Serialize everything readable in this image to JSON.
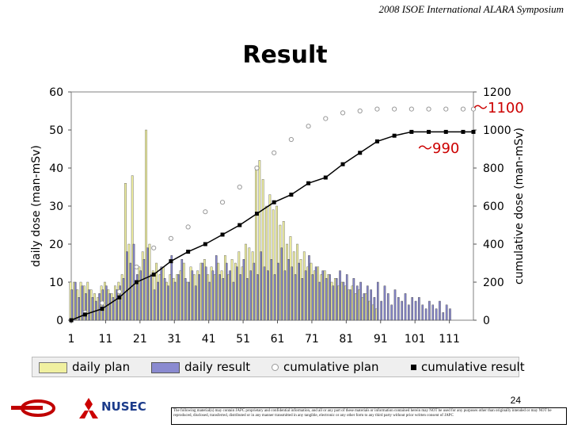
{
  "header": "2008 ISOE International ALARA Symposium",
  "title": "Result",
  "page_number": "24",
  "disclaimer": "The following material(s) may contain JAPC proprietary and confidential information, and all or any part of these materials or information contained herein may NOT be used for any purposes other than originally intended or may NOT be reproduced, disclosed, transferred, distributed or in any manner transmitted in any tangible, electronic or any other form to any third party without prior written consent of JAPC",
  "logos": {
    "nusec": "NUSEC",
    "left_logo_icon": "company-logo-icon",
    "mitsubishi_icon": "mitsubishi-logo-icon"
  },
  "colors": {
    "daily_plan": "#f0f0a0",
    "daily_result": "#8a8ad0",
    "cumulative_plan": "#c8c8c8",
    "cumulative_result": "#000000",
    "annotation": "#cc0000"
  },
  "chart_data": {
    "type": "bar+line",
    "xlabel": "",
    "ylabel": "daily dose (man-mSv)",
    "y2label": "cumulative dose (man-mSv)",
    "xticks": [
      "1",
      "11",
      "21",
      "31",
      "41",
      "51",
      "61",
      "71",
      "81",
      "91",
      "101",
      "111"
    ],
    "xlim": [
      1,
      118
    ],
    "ylim": [
      0,
      60
    ],
    "y2lim": [
      0,
      1200
    ],
    "yticks": [
      "0",
      "10",
      "20",
      "30",
      "40",
      "50",
      "60"
    ],
    "y2ticks": [
      "0",
      "200",
      "400",
      "600",
      "800",
      "1000",
      "1200"
    ],
    "legend": [
      "daily plan",
      "daily result",
      "cumulative plan",
      "cumulative result"
    ],
    "annotations": [
      {
        "text": "～1100",
        "x": 118,
        "y2": 1100
      },
      {
        "text": "～990",
        "x": 99,
        "y2": 990
      }
    ],
    "series": [
      {
        "name": "daily plan",
        "type": "bar",
        "axis": "left",
        "x": [
          1,
          2,
          3,
          4,
          5,
          6,
          7,
          8,
          9,
          10,
          11,
          12,
          13,
          14,
          15,
          16,
          17,
          18,
          19,
          20,
          21,
          22,
          23,
          24,
          25,
          26,
          27,
          28,
          29,
          30,
          31,
          32,
          33,
          34,
          35,
          36,
          37,
          38,
          39,
          40,
          41,
          42,
          43,
          44,
          45,
          46,
          47,
          48,
          49,
          50,
          51,
          52,
          53,
          54,
          55,
          56,
          57,
          58,
          59,
          60,
          61,
          62,
          63,
          64,
          65,
          66,
          67,
          68,
          69,
          70,
          71,
          72,
          73,
          74,
          75,
          76,
          77,
          78,
          79,
          80,
          81,
          82,
          83,
          84,
          85,
          86,
          87,
          88,
          89,
          90
        ],
        "values": [
          10,
          10,
          8,
          10,
          9,
          10,
          8,
          7,
          6,
          9,
          10,
          8,
          7,
          9,
          10,
          12,
          36,
          20,
          38,
          10,
          14,
          18,
          50,
          20,
          13,
          15,
          12,
          14,
          10,
          12,
          11,
          12,
          13,
          15,
          10,
          14,
          12,
          13,
          15,
          16,
          12,
          14,
          12,
          15,
          13,
          17,
          12,
          16,
          15,
          18,
          14,
          20,
          19,
          18,
          40,
          42,
          37,
          30,
          33,
          29,
          30,
          25,
          26,
          20,
          22,
          18,
          20,
          16,
          18,
          14,
          15,
          13,
          14,
          12,
          13,
          12,
          10,
          11,
          9,
          10,
          9,
          8,
          9,
          7,
          8,
          6,
          7,
          5,
          4,
          3
        ]
      },
      {
        "name": "daily result",
        "type": "bar",
        "axis": "left",
        "x": [
          1,
          2,
          3,
          4,
          5,
          6,
          7,
          8,
          9,
          10,
          11,
          12,
          13,
          14,
          15,
          16,
          17,
          18,
          19,
          20,
          21,
          22,
          23,
          24,
          25,
          26,
          27,
          28,
          29,
          30,
          31,
          32,
          33,
          34,
          35,
          36,
          37,
          38,
          39,
          40,
          41,
          42,
          43,
          44,
          45,
          46,
          47,
          48,
          49,
          50,
          51,
          52,
          53,
          54,
          55,
          56,
          57,
          58,
          59,
          60,
          61,
          62,
          63,
          64,
          65,
          66,
          67,
          68,
          69,
          70,
          71,
          72,
          73,
          74,
          75,
          76,
          77,
          78,
          79,
          80,
          81,
          82,
          83,
          84,
          85,
          86,
          87,
          88,
          89,
          90,
          91,
          92,
          93,
          94,
          95,
          96,
          97,
          98,
          99,
          100,
          101,
          102,
          103,
          104,
          105,
          106,
          107,
          108,
          109,
          110,
          111
        ],
        "values": [
          8,
          10,
          6,
          9,
          7,
          8,
          6,
          5,
          7,
          8,
          9,
          7,
          6,
          8,
          9,
          11,
          18,
          15,
          20,
          12,
          13,
          16,
          19,
          12,
          8,
          10,
          14,
          11,
          9,
          17,
          10,
          12,
          16,
          11,
          10,
          13,
          9,
          12,
          15,
          14,
          10,
          13,
          17,
          12,
          11,
          15,
          13,
          10,
          14,
          12,
          16,
          11,
          13,
          15,
          12,
          18,
          14,
          13,
          16,
          12,
          15,
          19,
          13,
          16,
          14,
          12,
          15,
          11,
          13,
          17,
          12,
          14,
          10,
          13,
          11,
          12,
          9,
          11,
          13,
          10,
          12,
          8,
          11,
          9,
          10,
          7,
          9,
          8,
          6,
          10,
          5,
          9,
          7,
          4,
          8,
          6,
          5,
          7,
          4,
          6,
          5,
          6,
          4,
          3,
          5,
          4,
          3,
          5,
          2,
          4,
          3
        ]
      },
      {
        "name": "cumulative plan",
        "type": "line-circle",
        "axis": "right",
        "x": [
          1,
          5,
          10,
          15,
          20,
          25,
          30,
          35,
          40,
          45,
          50,
          55,
          60,
          65,
          70,
          75,
          80,
          85,
          90,
          95,
          100,
          105,
          110,
          115,
          118
        ],
        "values": [
          0,
          40,
          90,
          150,
          280,
          380,
          430,
          490,
          570,
          620,
          700,
          800,
          880,
          950,
          1020,
          1060,
          1090,
          1100,
          1110,
          1110,
          1110,
          1110,
          1110,
          1110,
          1110
        ]
      },
      {
        "name": "cumulative result",
        "type": "line-square",
        "axis": "right",
        "x": [
          1,
          5,
          10,
          15,
          20,
          25,
          30,
          35,
          40,
          45,
          50,
          55,
          60,
          65,
          70,
          75,
          80,
          85,
          90,
          95,
          100,
          105,
          110,
          115,
          118
        ],
        "values": [
          0,
          30,
          60,
          120,
          200,
          240,
          310,
          360,
          400,
          450,
          500,
          560,
          620,
          660,
          720,
          750,
          820,
          880,
          940,
          970,
          990,
          990,
          990,
          990,
          990
        ]
      }
    ]
  }
}
